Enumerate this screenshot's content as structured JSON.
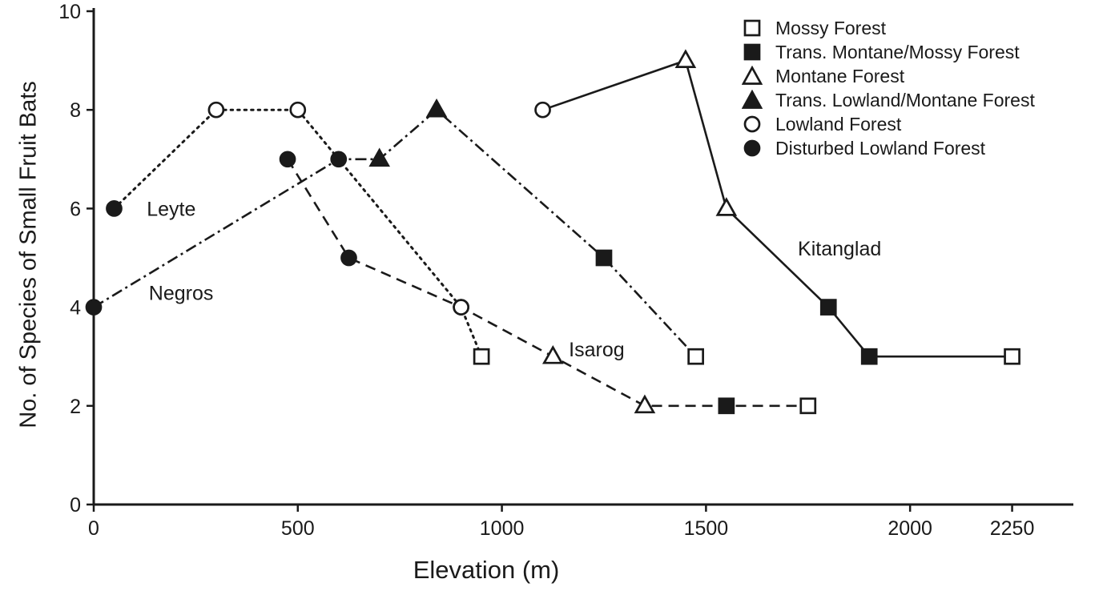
{
  "chart_data": {
    "type": "line",
    "title": "",
    "xlabel": "Elevation (m)",
    "ylabel": "No. of Species of Small Fruit Bats",
    "xlim": [
      0,
      2400
    ],
    "ylim": [
      0,
      10
    ],
    "x_ticks": [
      0,
      500,
      1000,
      1500,
      2000,
      2250
    ],
    "y_ticks": [
      0,
      2,
      4,
      6,
      8,
      10
    ],
    "grid": false,
    "legend_position": "top-right",
    "legend": [
      {
        "label": "Mossy Forest",
        "marker": "open-square"
      },
      {
        "label": "Trans. Montane/Mossy Forest",
        "marker": "filled-square"
      },
      {
        "label": "Montane Forest",
        "marker": "open-triangle"
      },
      {
        "label": "Trans. Lowland/Montane Forest",
        "marker": "filled-triangle"
      },
      {
        "label": "Lowland Forest",
        "marker": "open-circle"
      },
      {
        "label": "Disturbed Lowland Forest",
        "marker": "filled-circle"
      }
    ],
    "series": [
      {
        "name": "Leyte",
        "line_style": "dotted",
        "label_pos": {
          "x": 130,
          "y": 5.85
        },
        "points": [
          {
            "x": 50,
            "y": 6,
            "marker": "filled-circle"
          },
          {
            "x": 300,
            "y": 8,
            "marker": "open-circle"
          },
          {
            "x": 500,
            "y": 8,
            "marker": "open-circle"
          },
          {
            "x": 900,
            "y": 4,
            "marker": "open-circle"
          },
          {
            "x": 950,
            "y": 3,
            "marker": "open-square"
          }
        ]
      },
      {
        "name": "Negros",
        "line_style": "dash-dot",
        "label_pos": {
          "x": 135,
          "y": 4.15
        },
        "points": [
          {
            "x": 0,
            "y": 4,
            "marker": "filled-circle"
          },
          {
            "x": 600,
            "y": 7,
            "marker": "filled-circle"
          },
          {
            "x": 700,
            "y": 7,
            "marker": "filled-triangle"
          },
          {
            "x": 840,
            "y": 8,
            "marker": "filled-triangle"
          },
          {
            "x": 1250,
            "y": 5,
            "marker": "filled-square"
          },
          {
            "x": 1475,
            "y": 3,
            "marker": "open-square"
          }
        ]
      },
      {
        "name": "Isarog",
        "line_style": "dashed",
        "label_pos": {
          "x": 1164,
          "y": 3.0
        },
        "points": [
          {
            "x": 475,
            "y": 7,
            "marker": "filled-circle"
          },
          {
            "x": 625,
            "y": 5,
            "marker": "filled-circle"
          },
          {
            "x": 900,
            "y": 4,
            "marker": "open-circle"
          },
          {
            "x": 1125,
            "y": 3,
            "marker": "open-triangle"
          },
          {
            "x": 1350,
            "y": 2,
            "marker": "open-triangle"
          },
          {
            "x": 1550,
            "y": 2,
            "marker": "filled-square"
          },
          {
            "x": 1750,
            "y": 2,
            "marker": "open-square"
          }
        ]
      },
      {
        "name": "Kitanglad",
        "line_style": "solid",
        "label_pos": {
          "x": 1725,
          "y": 5.05
        },
        "points": [
          {
            "x": 1100,
            "y": 8,
            "marker": "open-circle"
          },
          {
            "x": 1450,
            "y": 9,
            "marker": "open-triangle"
          },
          {
            "x": 1550,
            "y": 6,
            "marker": "open-triangle"
          },
          {
            "x": 1800,
            "y": 4,
            "marker": "filled-square"
          },
          {
            "x": 1900,
            "y": 3,
            "marker": "filled-square"
          },
          {
            "x": 2250,
            "y": 3,
            "marker": "open-square"
          }
        ]
      }
    ],
    "colors": {
      "foreground": "#1a1a1a",
      "background": "#ffffff"
    }
  }
}
